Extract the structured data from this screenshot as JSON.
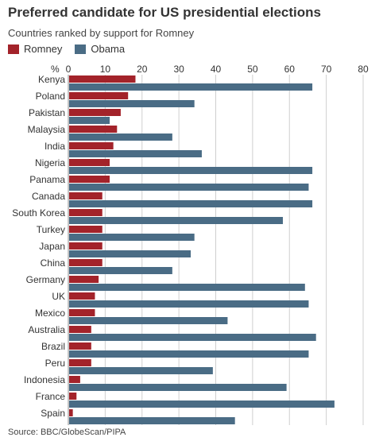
{
  "header": {
    "title": "Preferred candidate for US presidential elections",
    "subtitle": "Countries ranked by support for Romney"
  },
  "legend": [
    {
      "label": "Romney",
      "color": "#a3232a"
    },
    {
      "label": "Obama",
      "color": "#4a6c85"
    }
  ],
  "source": "Source: BBC/GlobeScan/PIPA",
  "chart_data": {
    "type": "bar",
    "orientation": "horizontal",
    "title": "Preferred candidate for US presidential elections",
    "subtitle": "Countries ranked by support for Romney",
    "xlabel": "%",
    "xlim": [
      0,
      80
    ],
    "xticks": [
      10,
      20,
      30,
      40,
      50,
      60,
      70,
      80
    ],
    "grid": true,
    "legend_position": "top-left",
    "categories": [
      "Kenya",
      "Poland",
      "Pakistan",
      "Malaysia",
      "India",
      "Nigeria",
      "Panama",
      "Canada",
      "South Korea",
      "Turkey",
      "Japan",
      "China",
      "Germany",
      "UK",
      "Mexico",
      "Australia",
      "Brazil",
      "Peru",
      "Indonesia",
      "France",
      "Spain"
    ],
    "series": [
      {
        "name": "Romney",
        "color": "#a3232a",
        "values": [
          18,
          16,
          14,
          13,
          12,
          11,
          11,
          9,
          9,
          9,
          9,
          9,
          8,
          7,
          7,
          6,
          6,
          6,
          3,
          2,
          1
        ]
      },
      {
        "name": "Obama",
        "color": "#4a6c85",
        "values": [
          66,
          34,
          11,
          28,
          36,
          66,
          65,
          66,
          58,
          34,
          33,
          28,
          64,
          65,
          43,
          67,
          65,
          39,
          59,
          72,
          45
        ]
      }
    ]
  }
}
